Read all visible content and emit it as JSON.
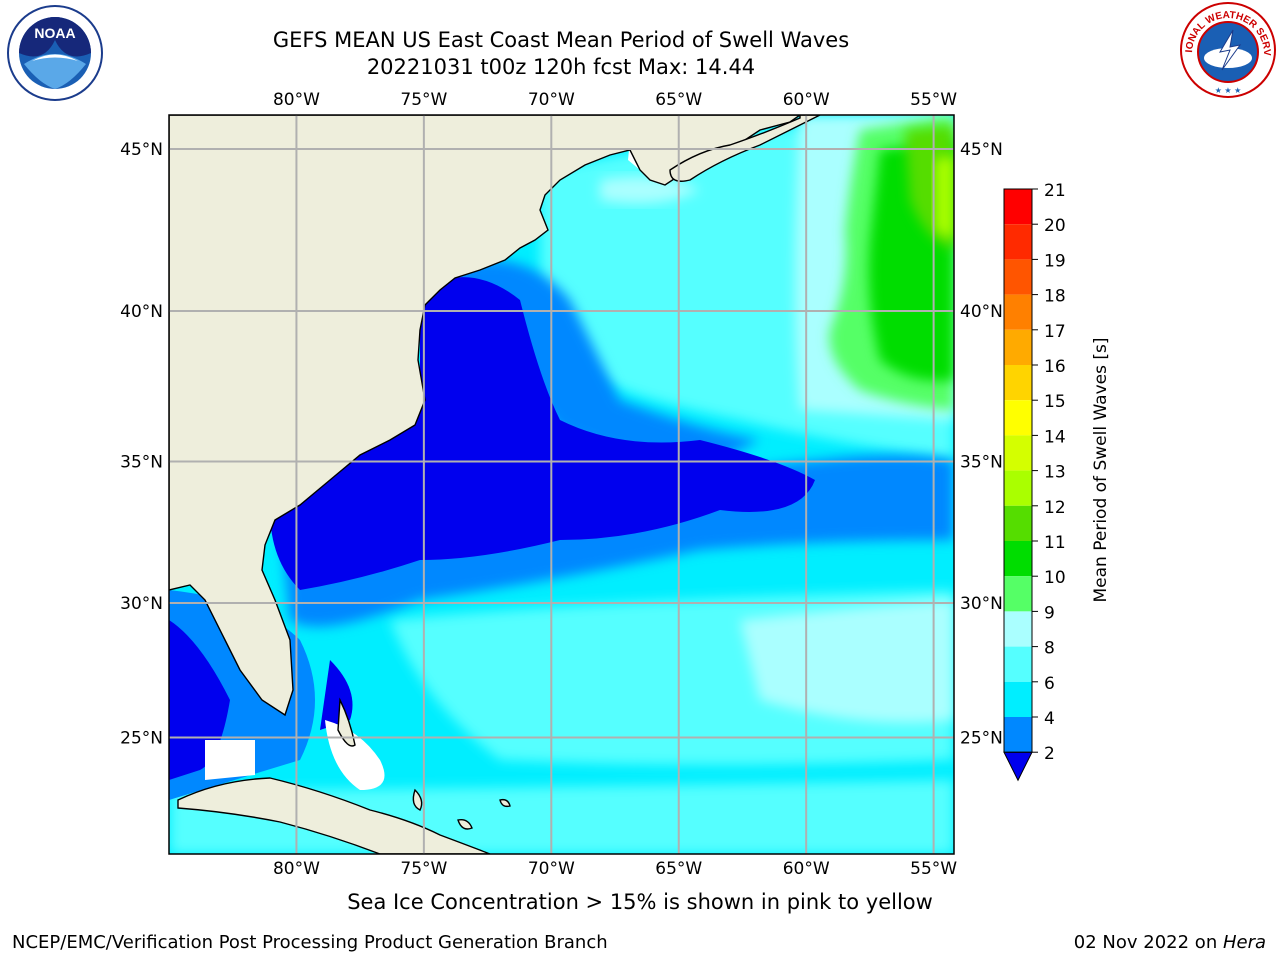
{
  "title_line1": "GEFS MEAN US East Coast Mean Period of Swell Waves",
  "title_line2": "20221031 t00z 120h fcst   Max: 14.44",
  "map": {
    "lon_labels": [
      "80°W",
      "75°W",
      "70°W",
      "65°W",
      "60°W",
      "55°W"
    ],
    "lat_labels": [
      "45°N",
      "40°N",
      "35°N",
      "30°N",
      "25°N"
    ],
    "lon_values": [
      -80,
      -75,
      -70,
      -65,
      -60,
      -55
    ],
    "lat_values": [
      45,
      40,
      35,
      30,
      25
    ],
    "extent": {
      "lon_min": -85,
      "lon_max": -54.2,
      "lat_min": 20.5,
      "lat_max": 46
    },
    "land_color": "#eeeedc",
    "grid_color": "#b0b0b0"
  },
  "colorbar": {
    "label": "Mean Period of Swell Waves [s]",
    "ticks": [
      "21",
      "20",
      "19",
      "18",
      "17",
      "16",
      "15",
      "14",
      "13",
      "12",
      "11",
      "10",
      "9",
      "8",
      "6",
      "4",
      "2"
    ],
    "colors": [
      "#ff0000",
      "#ff2a00",
      "#ff5500",
      "#ff8000",
      "#ffaa00",
      "#ffd400",
      "#ffff00",
      "#d4ff00",
      "#aaff00",
      "#55dd00",
      "#00dd00",
      "#55ff66",
      "#aaffff",
      "#55ffff",
      "#00eeff",
      "#0088ff",
      "#0000ee"
    ],
    "extend_color": "#0000ee"
  },
  "note": "Sea Ice Concentration > 15% is shown in pink to yellow",
  "footer": {
    "left": "NCEP/EMC/Verification Post Processing Product Generation Branch",
    "date": "02 Nov 2022 on ",
    "machine": "Hera"
  },
  "logos": {
    "noaa_text": "NOAA",
    "nws_text": "NATIONAL WEATHER SERVICE"
  },
  "colors": {
    "deep_blue": "#0000ee",
    "mid_blue": "#0088ff",
    "cyan": "#00eeff",
    "light_cyan": "#55ffff",
    "pale_cyan": "#aaffff",
    "light_green": "#55ff66",
    "green": "#00dd00",
    "yellow_green": "#aaff00"
  }
}
